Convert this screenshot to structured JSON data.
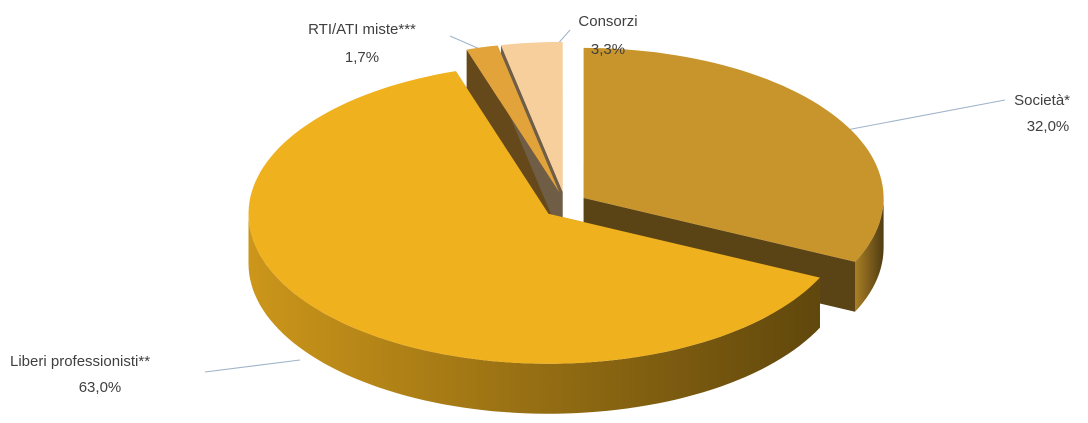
{
  "chart_data": {
    "type": "pie3d",
    "categories": [
      "Società*",
      "Liberi professionisti**",
      "RTI/ATI miste***",
      "Consorzi"
    ],
    "values": [
      32.0,
      63.0,
      1.7,
      3.3
    ],
    "value_labels": [
      "32,0%",
      "63,0%",
      "1,7%",
      "3,3%"
    ],
    "colors": [
      "#c8952c",
      "#f0b11f",
      "#e2a33a",
      "#f6cf9c"
    ]
  }
}
